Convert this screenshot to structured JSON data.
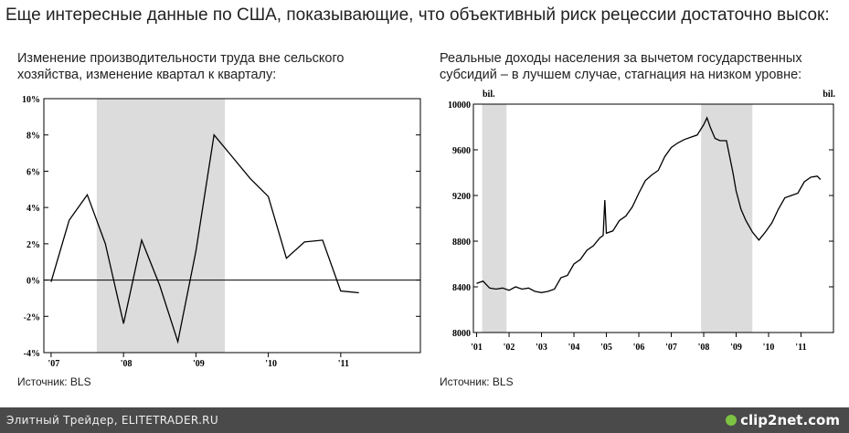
{
  "page": {
    "title": "Еще интересные данные по США, показывающие, что объективный риск рецессии достаточно высок:"
  },
  "footer": {
    "text": "Элитный Трейдер, ELITETRADER.RU",
    "logo": "clip2net.com",
    "logo_icon": "clip2net-logo-icon"
  },
  "chart_data": [
    {
      "type": "line",
      "title": "Изменение производительности труда вне сельского хозяйства, изменение квартал к кварталу:",
      "source": "Источник: BLS",
      "ylim": [
        -4,
        10
      ],
      "y_ticks": [
        "10%",
        "8%",
        "6%",
        "4%",
        "2%",
        "0%",
        "-2%",
        "-4%"
      ],
      "y_tick_values": [
        10,
        8,
        6,
        4,
        2,
        0,
        -2,
        -4
      ],
      "x_ticks": [
        "'07",
        "'08",
        "'09",
        "'10",
        "'11"
      ],
      "x_tick_values": [
        2007,
        2008,
        2009,
        2010,
        2011
      ],
      "xlim": [
        2006.9,
        2012.1
      ],
      "recession_shade": [
        2007.63,
        2009.4
      ],
      "zero_line": true,
      "series": [
        {
          "x": [
            2007.0,
            2007.25,
            2007.5,
            2007.75,
            2008.0,
            2008.25,
            2008.5,
            2008.75,
            2009.0,
            2009.25,
            2009.5,
            2009.75,
            2010.0,
            2010.25,
            2010.5,
            2010.75,
            2011.0,
            2011.25
          ],
          "values": [
            -0.1,
            3.3,
            4.7,
            2.0,
            -2.4,
            2.2,
            -0.3,
            -3.4,
            1.6,
            8.0,
            6.8,
            5.6,
            4.6,
            1.2,
            2.1,
            2.2,
            -0.6,
            -0.7
          ]
        }
      ]
    },
    {
      "type": "line",
      "title": "Реальные доходы населения за вычетом государственных субсидий – в лучшем случае, стагнация на низком уровне:",
      "source": "Источник: BLS",
      "unit_left": "bil.",
      "unit_right": "bil.",
      "ylim": [
        8000,
        10000
      ],
      "y_ticks": [
        "10000",
        "9600",
        "9200",
        "8800",
        "8400",
        "8000"
      ],
      "y_tick_values": [
        10000,
        9600,
        9200,
        8800,
        8400,
        8000
      ],
      "x_ticks": [
        "'01",
        "'02",
        "'03",
        "'04",
        "'05",
        "'06",
        "'07",
        "'08",
        "'09",
        "'10",
        "'11"
      ],
      "x_tick_values": [
        2001,
        2002,
        2003,
        2004,
        2005,
        2006,
        2007,
        2008,
        2009,
        2010,
        2011
      ],
      "xlim": [
        2000.9,
        2012.0
      ],
      "recession_shade": [
        [
          2001.17,
          2001.92
        ],
        [
          2007.92,
          2009.5
        ]
      ],
      "series": [
        {
          "x": [
            2001.0,
            2001.2,
            2001.4,
            2001.6,
            2001.8,
            2002.0,
            2002.2,
            2002.4,
            2002.6,
            2002.8,
            2003.0,
            2003.2,
            2003.4,
            2003.6,
            2003.8,
            2004.0,
            2004.2,
            2004.4,
            2004.6,
            2004.8,
            2004.9,
            2004.95,
            2005.0,
            2005.2,
            2005.4,
            2005.6,
            2005.8,
            2006.0,
            2006.2,
            2006.4,
            2006.6,
            2006.8,
            2007.0,
            2007.2,
            2007.4,
            2007.6,
            2007.8,
            2008.0,
            2008.1,
            2008.2,
            2008.35,
            2008.5,
            2008.7,
            2008.9,
            2009.0,
            2009.15,
            2009.3,
            2009.5,
            2009.7,
            2009.9,
            2010.1,
            2010.3,
            2010.5,
            2010.7,
            2010.9,
            2011.1,
            2011.3,
            2011.5,
            2011.6
          ],
          "values": [
            8430,
            8450,
            8390,
            8380,
            8390,
            8370,
            8400,
            8380,
            8390,
            8360,
            8350,
            8360,
            8380,
            8480,
            8500,
            8600,
            8640,
            8720,
            8760,
            8830,
            8850,
            9160,
            8870,
            8890,
            8980,
            9020,
            9100,
            9220,
            9330,
            9380,
            9420,
            9540,
            9620,
            9660,
            9690,
            9710,
            9730,
            9820,
            9880,
            9800,
            9700,
            9680,
            9680,
            9400,
            9240,
            9080,
            8980,
            8880,
            8810,
            8880,
            8960,
            9080,
            9180,
            9200,
            9220,
            9320,
            9360,
            9370,
            9340
          ]
        }
      ]
    }
  ]
}
